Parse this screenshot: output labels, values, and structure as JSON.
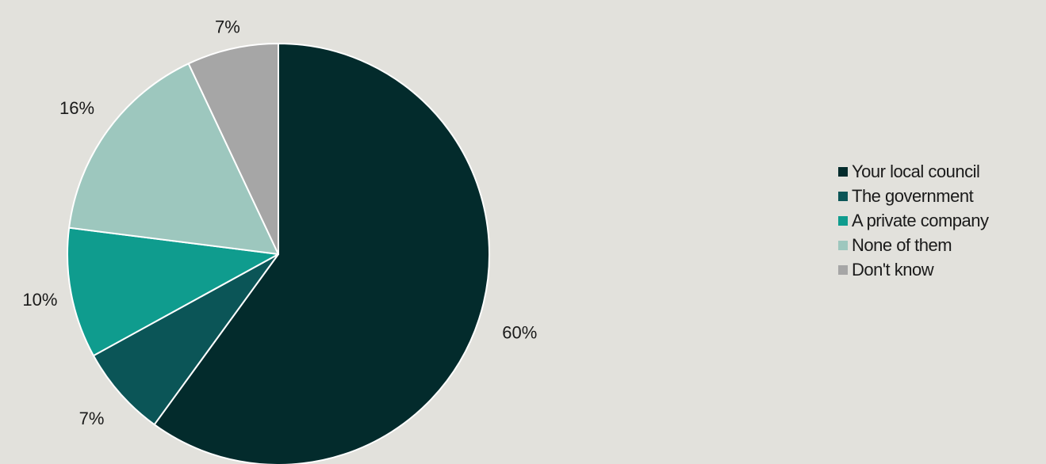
{
  "chart_data": {
    "type": "pie",
    "title": "",
    "start_angle_deg": 0,
    "direction": "clockwise",
    "legend_position": "right",
    "slices": [
      {
        "label": "Your local council",
        "value": 60,
        "display": "60%",
        "color": "#032b2c"
      },
      {
        "label": "The government",
        "value": 7,
        "display": "7%",
        "color": "#0b5557"
      },
      {
        "label": "A private company",
        "value": 10,
        "display": "10%",
        "color": "#0f9c8e"
      },
      {
        "label": "None of them",
        "value": 16,
        "display": "16%",
        "color": "#9dc7be"
      },
      {
        "label": "Don't know",
        "value": 7,
        "display": "7%",
        "color": "#a6a6a6"
      }
    ]
  }
}
